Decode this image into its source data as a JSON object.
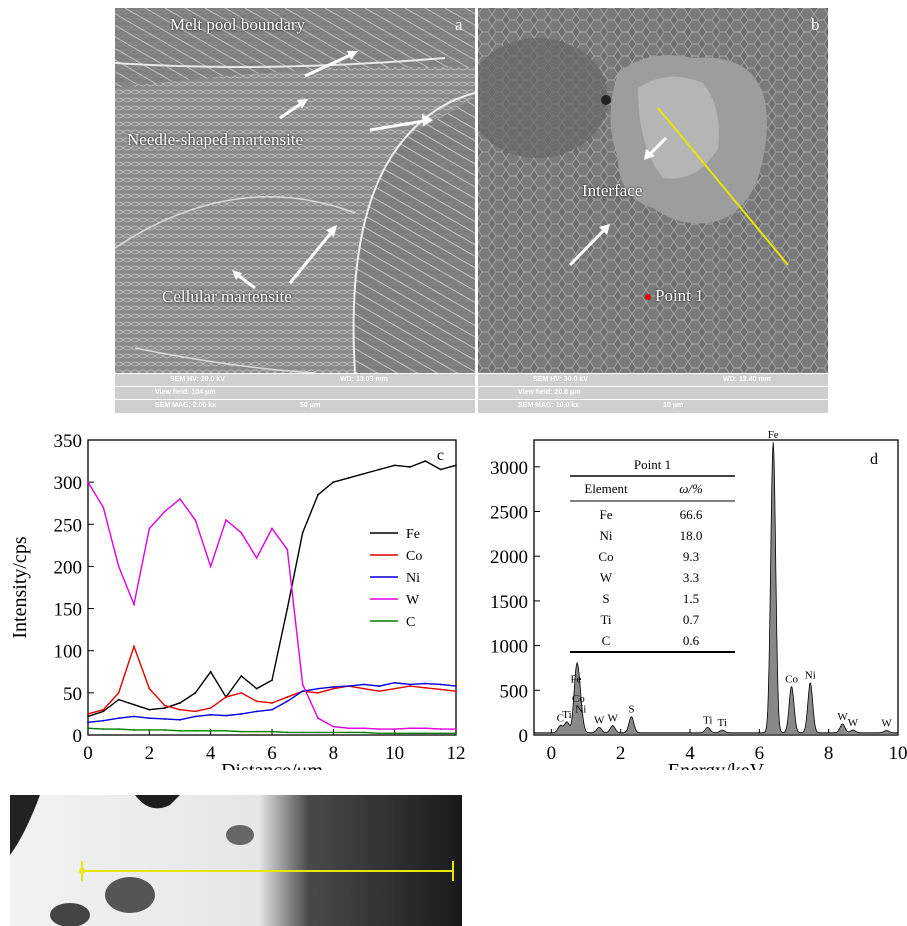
{
  "panel_a": {
    "letter": "a",
    "labels": {
      "melt_pool": "Melt pool boundary",
      "needle": "Needle-shaped martensite",
      "cellular": "Cellular martensite"
    },
    "info": {
      "hv": "SEM HV: 30.0 kV",
      "wd": "WD: 13.03 mm",
      "view": "View field: 104 μm",
      "mag": "SEM MAG: 2.00 kx",
      "scale": "50 μm"
    }
  },
  "panel_b": {
    "letter": "b",
    "labels": {
      "interface": "Interface",
      "point1": "Point 1"
    },
    "info": {
      "hv": "SEM HV: 30.0 kV",
      "wd": "WD: 12.40 mm",
      "view": "View field: 20.8 μm",
      "mag": "SEM MAG: 10.0 kx",
      "scale": "10 μm"
    }
  },
  "chart_data": [
    {
      "type": "line",
      "panel_letter": "c",
      "xlabel": "Distance/μm",
      "ylabel": "Intensity/cps",
      "xlim": [
        0,
        12
      ],
      "ylim": [
        0,
        350
      ],
      "xticks": [
        0,
        2,
        4,
        6,
        8,
        10,
        12
      ],
      "yticks": [
        0,
        50,
        100,
        150,
        200,
        250,
        300,
        350
      ],
      "legend_position": "right",
      "x": [
        0,
        0.5,
        1,
        1.5,
        2,
        2.5,
        3,
        3.5,
        4,
        4.5,
        5,
        5.5,
        6,
        6.5,
        7,
        7.5,
        8,
        8.5,
        9,
        9.5,
        10,
        10.5,
        11,
        11.5,
        12
      ],
      "series": [
        {
          "name": "Fe",
          "color": "#000000",
          "values": [
            22,
            28,
            42,
            36,
            30,
            32,
            38,
            50,
            75,
            45,
            70,
            55,
            65,
            150,
            240,
            285,
            300,
            305,
            310,
            315,
            320,
            318,
            325,
            315,
            320
          ]
        },
        {
          "name": "Co",
          "color": "#e00000",
          "values": [
            25,
            30,
            50,
            105,
            55,
            35,
            30,
            28,
            32,
            45,
            50,
            40,
            38,
            45,
            52,
            50,
            55,
            58,
            55,
            52,
            55,
            58,
            56,
            54,
            52
          ]
        },
        {
          "name": "Ni",
          "color": "#0000dd",
          "values": [
            15,
            17,
            20,
            22,
            20,
            19,
            18,
            22,
            24,
            23,
            25,
            28,
            30,
            40,
            52,
            55,
            57,
            58,
            60,
            58,
            62,
            60,
            61,
            60,
            58
          ]
        },
        {
          "name": "W",
          "color": "#e000e0",
          "values": [
            300,
            270,
            200,
            155,
            245,
            265,
            280,
            255,
            200,
            255,
            240,
            210,
            245,
            220,
            60,
            20,
            10,
            8,
            8,
            7,
            7,
            8,
            8,
            7,
            7
          ]
        },
        {
          "name": "C",
          "color": "#008000",
          "values": [
            8,
            7,
            7,
            6,
            6,
            6,
            5,
            5,
            5,
            5,
            4,
            4,
            4,
            3,
            3,
            3,
            3,
            3,
            3,
            2,
            2,
            2,
            2,
            2,
            2
          ]
        }
      ]
    },
    {
      "type": "area",
      "panel_letter": "d",
      "xlabel": "Energy/keV",
      "ylabel": "",
      "xlim": [
        -0.5,
        10
      ],
      "ylim": [
        0,
        3300
      ],
      "xticks": [
        0,
        2,
        4,
        6,
        8,
        10
      ],
      "yticks": [
        0,
        500,
        1000,
        1500,
        2000,
        2500,
        3000
      ],
      "peaks": [
        {
          "energy": 0.26,
          "counts": 80,
          "label": "C"
        },
        {
          "energy": 0.45,
          "counts": 120,
          "label": "Ti"
        },
        {
          "energy": 0.71,
          "counts": 520,
          "label": "Fe"
        },
        {
          "energy": 0.78,
          "counts": 300,
          "label": "Co"
        },
        {
          "energy": 0.85,
          "counts": 180,
          "label": "Ni"
        },
        {
          "energy": 1.38,
          "counts": 60,
          "label": "W"
        },
        {
          "energy": 1.77,
          "counts": 80,
          "label": "W"
        },
        {
          "energy": 2.31,
          "counts": 180,
          "label": "S"
        },
        {
          "energy": 4.51,
          "counts": 60,
          "label": "Ti"
        },
        {
          "energy": 4.93,
          "counts": 30,
          "label": "Ti"
        },
        {
          "energy": 6.4,
          "counts": 3250,
          "label": "Fe"
        },
        {
          "energy": 6.93,
          "counts": 520,
          "label": "Co"
        },
        {
          "energy": 7.47,
          "counts": 560,
          "label": "Ni"
        },
        {
          "energy": 8.4,
          "counts": 100,
          "label": "W"
        },
        {
          "energy": 8.7,
          "counts": 30,
          "label": "W"
        },
        {
          "energy": 9.67,
          "counts": 25,
          "label": "W"
        }
      ],
      "table": {
        "title": "Point 1",
        "col_headers": [
          "Element",
          "ω/%"
        ],
        "rows": [
          [
            "Fe",
            "66.6"
          ],
          [
            "Ni",
            "18.0"
          ],
          [
            "Co",
            "9.3"
          ],
          [
            "W",
            "3.3"
          ],
          [
            "S",
            "1.5"
          ],
          [
            "Ti",
            "0.7"
          ],
          [
            "C",
            "0.6"
          ]
        ]
      }
    }
  ]
}
